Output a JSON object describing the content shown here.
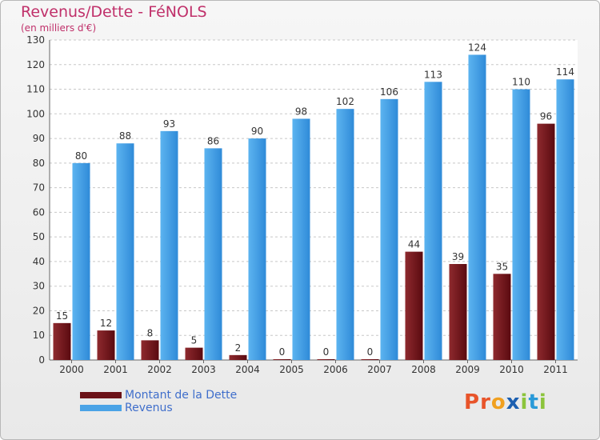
{
  "header": {
    "title": "Revenus/Dette - FéNOLS",
    "subtitle": "(en milliers d'€)"
  },
  "legend": {
    "items": [
      {
        "label": "Montant de la Dette",
        "color": "#6b1218"
      },
      {
        "label": "Revenus",
        "color": "#4aa3e6"
      }
    ]
  },
  "logo": {
    "letters": [
      "P",
      "r",
      "o",
      "x",
      "i",
      "t",
      "i"
    ],
    "colors": [
      "#e8542a",
      "#e8542a",
      "#f0a020",
      "#1c5fb0",
      "#8cc43c",
      "#2a9ad8",
      "#8cc43c"
    ]
  },
  "chart_data": {
    "type": "bar",
    "categories": [
      "2000",
      "2001",
      "2002",
      "2003",
      "2004",
      "2005",
      "2006",
      "2007",
      "2008",
      "2009",
      "2010",
      "2011"
    ],
    "series": [
      {
        "name": "Montant de la Dette",
        "values": [
          15,
          12,
          8,
          5,
          2,
          0,
          0,
          0,
          44,
          39,
          35,
          96
        ]
      },
      {
        "name": "Revenus",
        "values": [
          80,
          88,
          93,
          86,
          90,
          98,
          102,
          106,
          113,
          124,
          110,
          114
        ]
      }
    ],
    "title": "Revenus/Dette - FéNOLS",
    "ylim": [
      0,
      130
    ],
    "yticks": [
      0,
      10,
      20,
      30,
      40,
      50,
      60,
      70,
      80,
      90,
      100,
      110,
      120,
      130
    ],
    "grid": true
  }
}
